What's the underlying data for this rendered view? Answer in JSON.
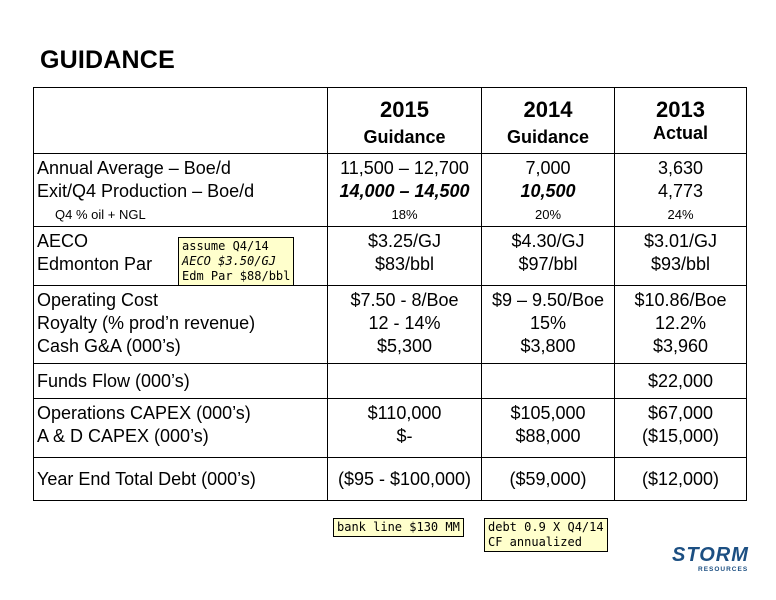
{
  "title": "GUIDANCE",
  "columns": [
    {
      "year": "2015",
      "sub": "Guidance"
    },
    {
      "year": "2014",
      "sub": "Guidance"
    },
    {
      "year": "2013",
      "sub": "Actual"
    }
  ],
  "rows": {
    "production": {
      "labels": [
        "Annual Average – Boe/d",
        "Exit/Q4 Production – Boe/d",
        "Q4 % oil + NGL"
      ],
      "c2015": [
        "11,500 – 12,700",
        "14,000 – 14,500",
        "18%"
      ],
      "c2014": [
        "7,000",
        "10,500",
        "20%"
      ],
      "c2013": [
        "3,630",
        "4,773",
        "24%"
      ]
    },
    "pricing": {
      "labels": [
        "AECO",
        "Edmonton Par"
      ],
      "c2015": [
        "$3.25/GJ",
        "$83/bbl"
      ],
      "c2014": [
        "$4.30/GJ",
        "$97/bbl"
      ],
      "c2013": [
        "$3.01/GJ",
        "$93/bbl"
      ]
    },
    "costs": {
      "labels": [
        "Operating Cost",
        "Royalty (% prod’n revenue)",
        "Cash G&A (000’s)"
      ],
      "c2015": [
        "$7.50 - 8/Boe",
        "12 - 14%",
        "$5,300"
      ],
      "c2014": [
        "$9 – 9.50/Boe",
        "15%",
        "$3,800"
      ],
      "c2013": [
        "$10.86/Boe",
        "12.2%",
        "$3,960"
      ]
    },
    "funds": {
      "label": "Funds Flow (000’s)",
      "c2015": "",
      "c2014": "",
      "c2013": "$22,000"
    },
    "capex": {
      "labels": [
        "Operations CAPEX (000’s)",
        "A & D CAPEX (000’s)"
      ],
      "c2015": [
        "$110,000",
        "$-"
      ],
      "c2014": [
        "$105,000",
        "$88,000"
      ],
      "c2013": [
        "$67,000",
        "($15,000)"
      ]
    },
    "debt": {
      "label": "Year End Total Debt (000’s)",
      "c2015": "($95 - $100,000)",
      "c2014": "($59,000)",
      "c2013": "($12,000)"
    }
  },
  "notes": {
    "pricing_note": [
      "assume Q4/14",
      "AECO $3.50/GJ",
      "Edm Par $88/bbl"
    ],
    "bank_note": "bank line $130 MM",
    "debt_note": [
      "debt 0.9 X Q4/14",
      "CF annualized"
    ]
  },
  "logo": {
    "word": "STORM",
    "tag": "RESOURCES",
    "color": "#1c4f82"
  },
  "note_bg": "#ffffcc"
}
